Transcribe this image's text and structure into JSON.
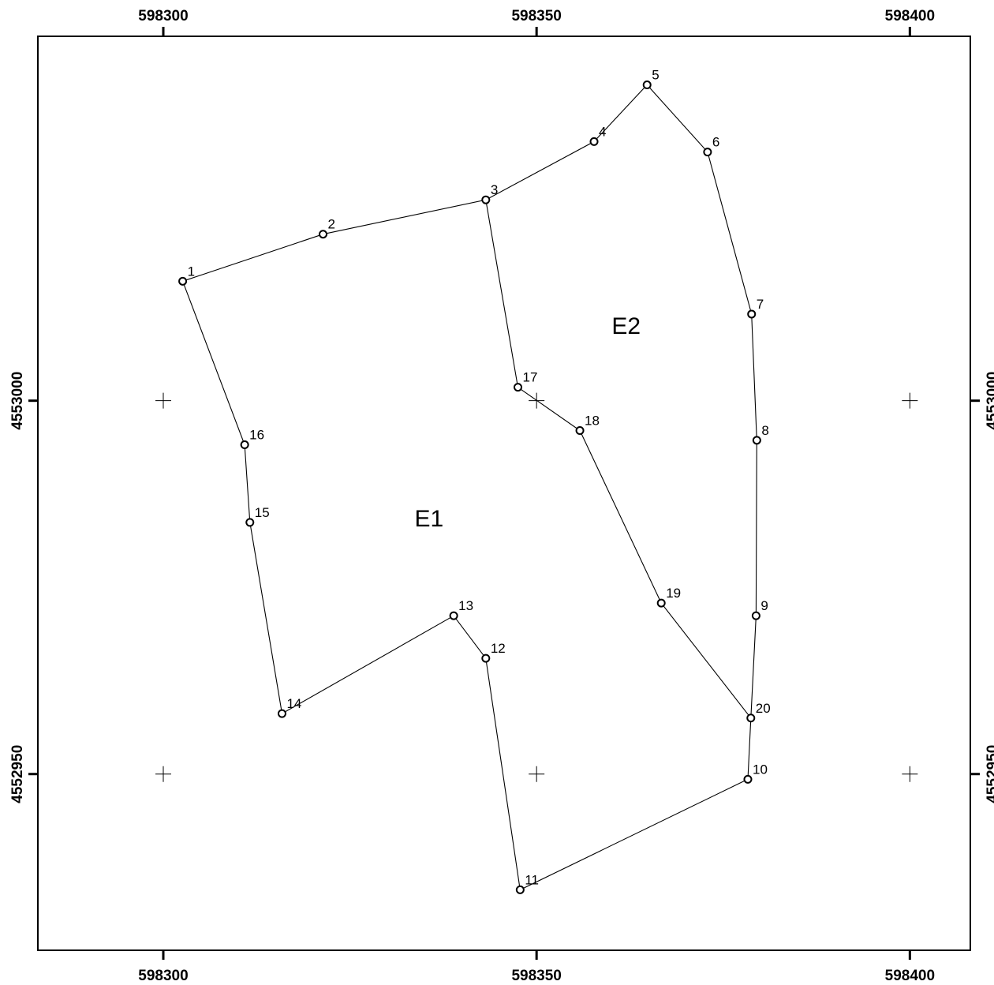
{
  "map": {
    "x_axis": {
      "min": 598283.2,
      "max": 598408.1,
      "ticks": [
        598300,
        598350,
        598400
      ]
    },
    "y_axis": {
      "min": 4552926.4,
      "max": 4553048.8,
      "ticks": [
        4552950,
        4553000
      ]
    },
    "x_tick_labels": [
      "598300",
      "598350",
      "598400"
    ],
    "y_tick_labels": [
      "4552950",
      "4553000"
    ],
    "grid_crosses": true,
    "vertices": [
      {
        "id": "1",
        "x": 598302.6,
        "y": 4553016.0
      },
      {
        "id": "2",
        "x": 598321.4,
        "y": 4553022.3
      },
      {
        "id": "3",
        "x": 598343.2,
        "y": 4553026.9
      },
      {
        "id": "4",
        "x": 598357.7,
        "y": 4553034.7
      },
      {
        "id": "5",
        "x": 598364.8,
        "y": 4553042.3
      },
      {
        "id": "6",
        "x": 598372.9,
        "y": 4553033.3
      },
      {
        "id": "7",
        "x": 598378.8,
        "y": 4553011.6
      },
      {
        "id": "8",
        "x": 598379.5,
        "y": 4552994.7
      },
      {
        "id": "9",
        "x": 598379.4,
        "y": 4552971.2
      },
      {
        "id": "10",
        "x": 598378.3,
        "y": 4552949.3
      },
      {
        "id": "11",
        "x": 598347.8,
        "y": 4552934.5
      },
      {
        "id": "12",
        "x": 598343.2,
        "y": 4552965.5
      },
      {
        "id": "13",
        "x": 598338.9,
        "y": 4552971.2
      },
      {
        "id": "14",
        "x": 598315.9,
        "y": 4552958.1
      },
      {
        "id": "15",
        "x": 598311.6,
        "y": 4552983.7
      },
      {
        "id": "16",
        "x": 598310.9,
        "y": 4552994.1
      },
      {
        "id": "17",
        "x": 598347.5,
        "y": 4553001.8
      },
      {
        "id": "18",
        "x": 598355.8,
        "y": 4552996.0
      },
      {
        "id": "19",
        "x": 598366.7,
        "y": 4552972.9
      },
      {
        "id": "20",
        "x": 598378.7,
        "y": 4552957.5
      }
    ],
    "boundary_lines": [
      [
        "1",
        "2",
        "3",
        "4",
        "5",
        "6",
        "7",
        "8",
        "9",
        "20",
        "10",
        "11",
        "12",
        "13",
        "14",
        "15",
        "16",
        "1"
      ],
      [
        "3",
        "17",
        "18",
        "19",
        "20"
      ]
    ],
    "parcels": [
      {
        "label": "E1",
        "x": 598335.6,
        "y": 4552984.0
      },
      {
        "label": "E2",
        "x": 598362.0,
        "y": 4553009.8
      }
    ]
  }
}
